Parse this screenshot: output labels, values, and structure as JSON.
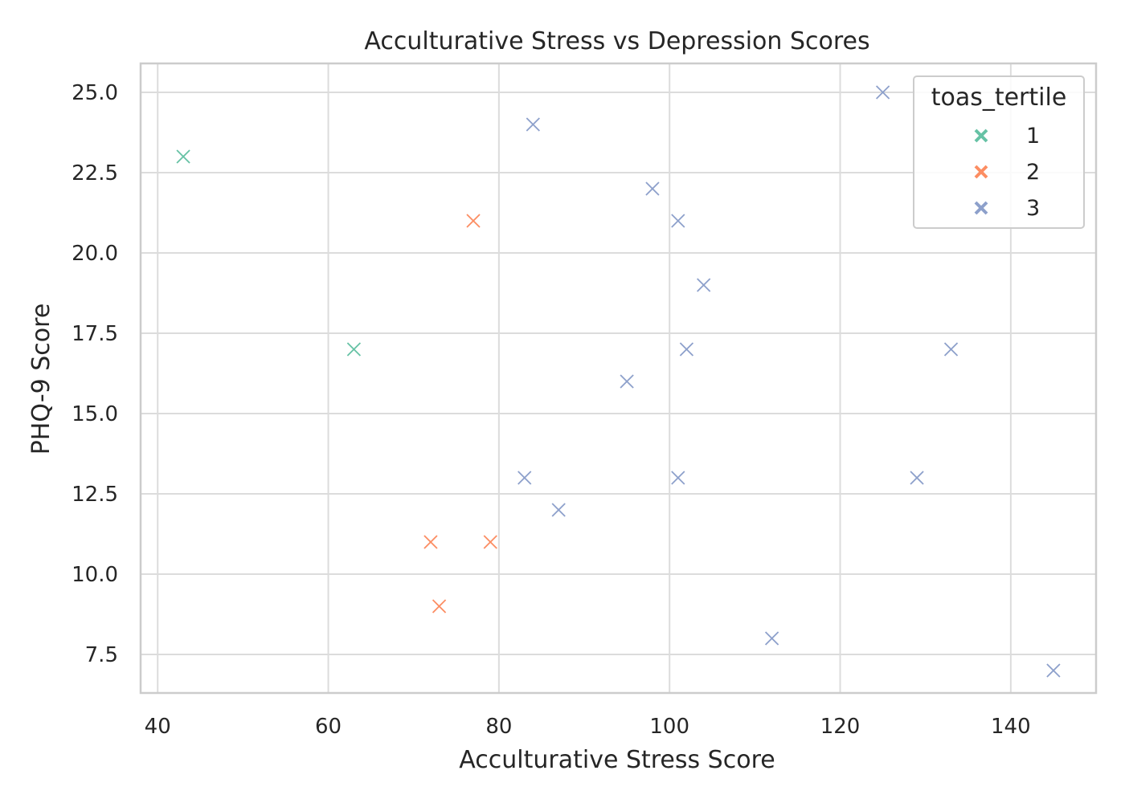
{
  "chart_data": {
    "type": "scatter",
    "title": "Acculturative Stress vs Depression Scores",
    "xlabel": "Acculturative Stress Score",
    "ylabel": "PHQ-9 Score",
    "xlim": [
      38,
      150
    ],
    "ylim": [
      6.3,
      25.9
    ],
    "xticks": [
      "40",
      "60",
      "80",
      "100",
      "120",
      "140"
    ],
    "yticks": [
      "7.5",
      "10.0",
      "12.5",
      "15.0",
      "17.5",
      "20.0",
      "22.5",
      "25.0"
    ],
    "grid": true,
    "marker": "x",
    "legend": {
      "title": "toas_tertile",
      "placement": "top-right"
    },
    "series": [
      {
        "name": "1",
        "color": "#66c2a5",
        "points": [
          {
            "x": 43,
            "y": 23
          },
          {
            "x": 63,
            "y": 17
          }
        ]
      },
      {
        "name": "2",
        "color": "#fc8d62",
        "points": [
          {
            "x": 77,
            "y": 21
          },
          {
            "x": 72,
            "y": 11
          },
          {
            "x": 79,
            "y": 11
          },
          {
            "x": 73,
            "y": 9
          }
        ]
      },
      {
        "name": "3",
        "color": "#8da0cb",
        "points": [
          {
            "x": 84,
            "y": 24
          },
          {
            "x": 98,
            "y": 22
          },
          {
            "x": 101,
            "y": 21
          },
          {
            "x": 104,
            "y": 19
          },
          {
            "x": 102,
            "y": 17
          },
          {
            "x": 95,
            "y": 16
          },
          {
            "x": 83,
            "y": 13
          },
          {
            "x": 101,
            "y": 13
          },
          {
            "x": 87,
            "y": 12
          },
          {
            "x": 112,
            "y": 8
          },
          {
            "x": 125,
            "y": 25
          },
          {
            "x": 133,
            "y": 17
          },
          {
            "x": 129,
            "y": 13
          },
          {
            "x": 145,
            "y": 7
          }
        ]
      }
    ]
  }
}
